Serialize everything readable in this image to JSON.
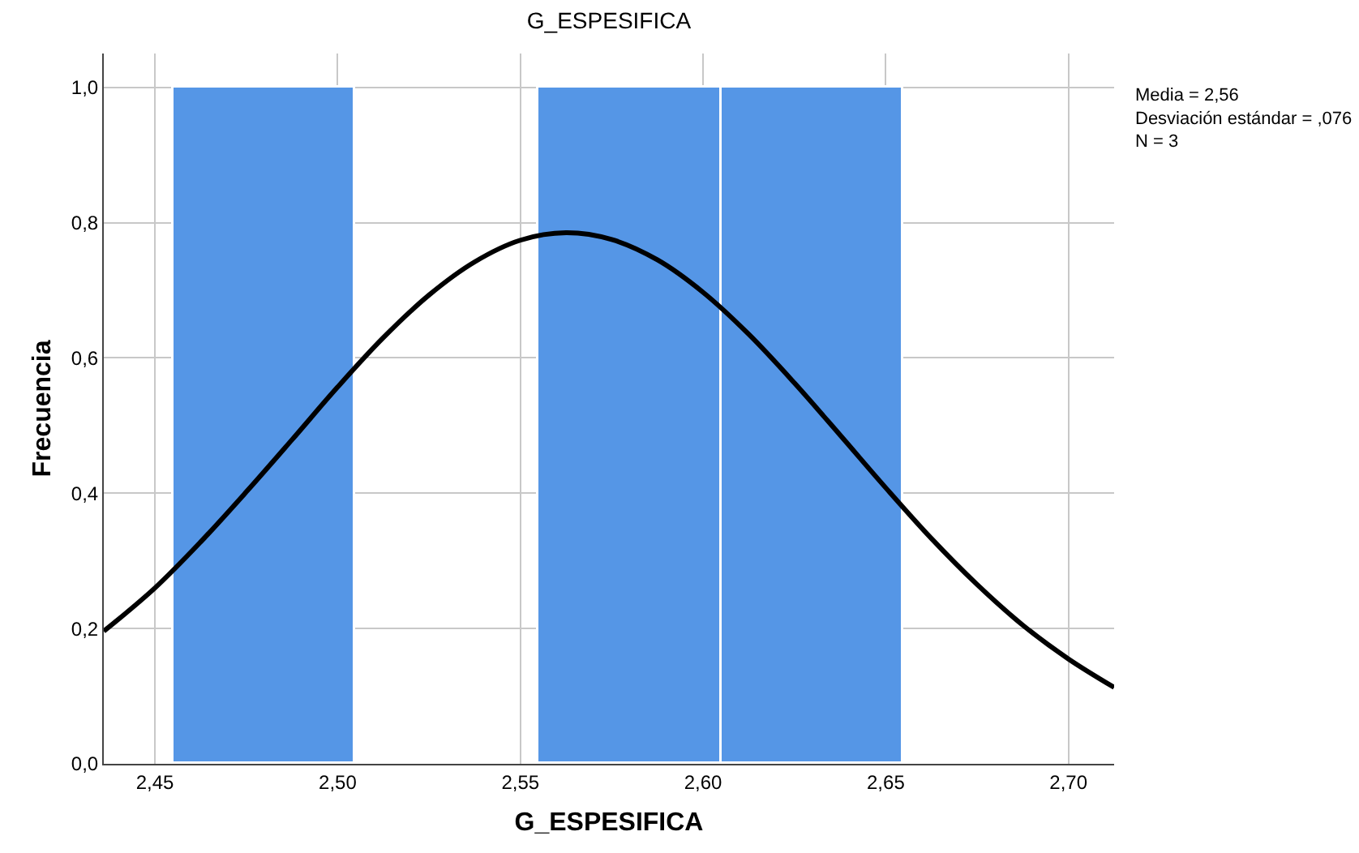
{
  "chart_data": {
    "type": "histogram",
    "title": "G_ESPESIFICA",
    "xlabel": "G_ESPESIFICA",
    "ylabel": "Frecuencia",
    "bins": [
      2.455,
      2.505,
      2.555,
      2.605,
      2.655
    ],
    "values": [
      1,
      0,
      1,
      1
    ],
    "color": "#5596e6",
    "series": [
      {
        "type": "line",
        "color": "#000000",
        "x": [
          2.436,
          2.45,
          2.4625,
          2.475,
          2.4875,
          2.5,
          2.5125,
          2.525,
          2.5375,
          2.55,
          2.5625,
          2.575,
          2.5875,
          2.6,
          2.6125,
          2.625,
          2.6375,
          2.65,
          2.6625,
          2.675,
          2.6875,
          2.7,
          2.7125
        ],
        "values": [
          0.196,
          0.26,
          0.328,
          0.402,
          0.479,
          0.557,
          0.63,
          0.693,
          0.742,
          0.774,
          0.785,
          0.775,
          0.745,
          0.697,
          0.635,
          0.563,
          0.486,
          0.408,
          0.333,
          0.265,
          0.205,
          0.155,
          0.113
        ]
      }
    ],
    "xlim": [
      2.436,
      2.7125
    ],
    "xticks": [
      {
        "value": 2.45,
        "label": "2,45"
      },
      {
        "value": 2.5,
        "label": "2,50"
      },
      {
        "value": 2.55,
        "label": "2,55"
      },
      {
        "value": 2.6,
        "label": "2,60"
      },
      {
        "value": 2.65,
        "label": "2,65"
      },
      {
        "value": 2.7,
        "label": "2,70"
      }
    ],
    "ylim": [
      0,
      1.05
    ],
    "yticks": [
      {
        "value": 0,
        "label": "0,0"
      },
      {
        "value": 0.2,
        "label": "0,2"
      },
      {
        "value": 0.4,
        "label": "0,4"
      },
      {
        "value": 0.6,
        "label": "0,6"
      },
      {
        "value": 0.8,
        "label": "0,8"
      },
      {
        "value": 1,
        "label": "1,0"
      }
    ],
    "grid": true,
    "annotations": [
      "Media = 2,56",
      "Desviación estándar = ,076",
      "N = 3"
    ]
  }
}
